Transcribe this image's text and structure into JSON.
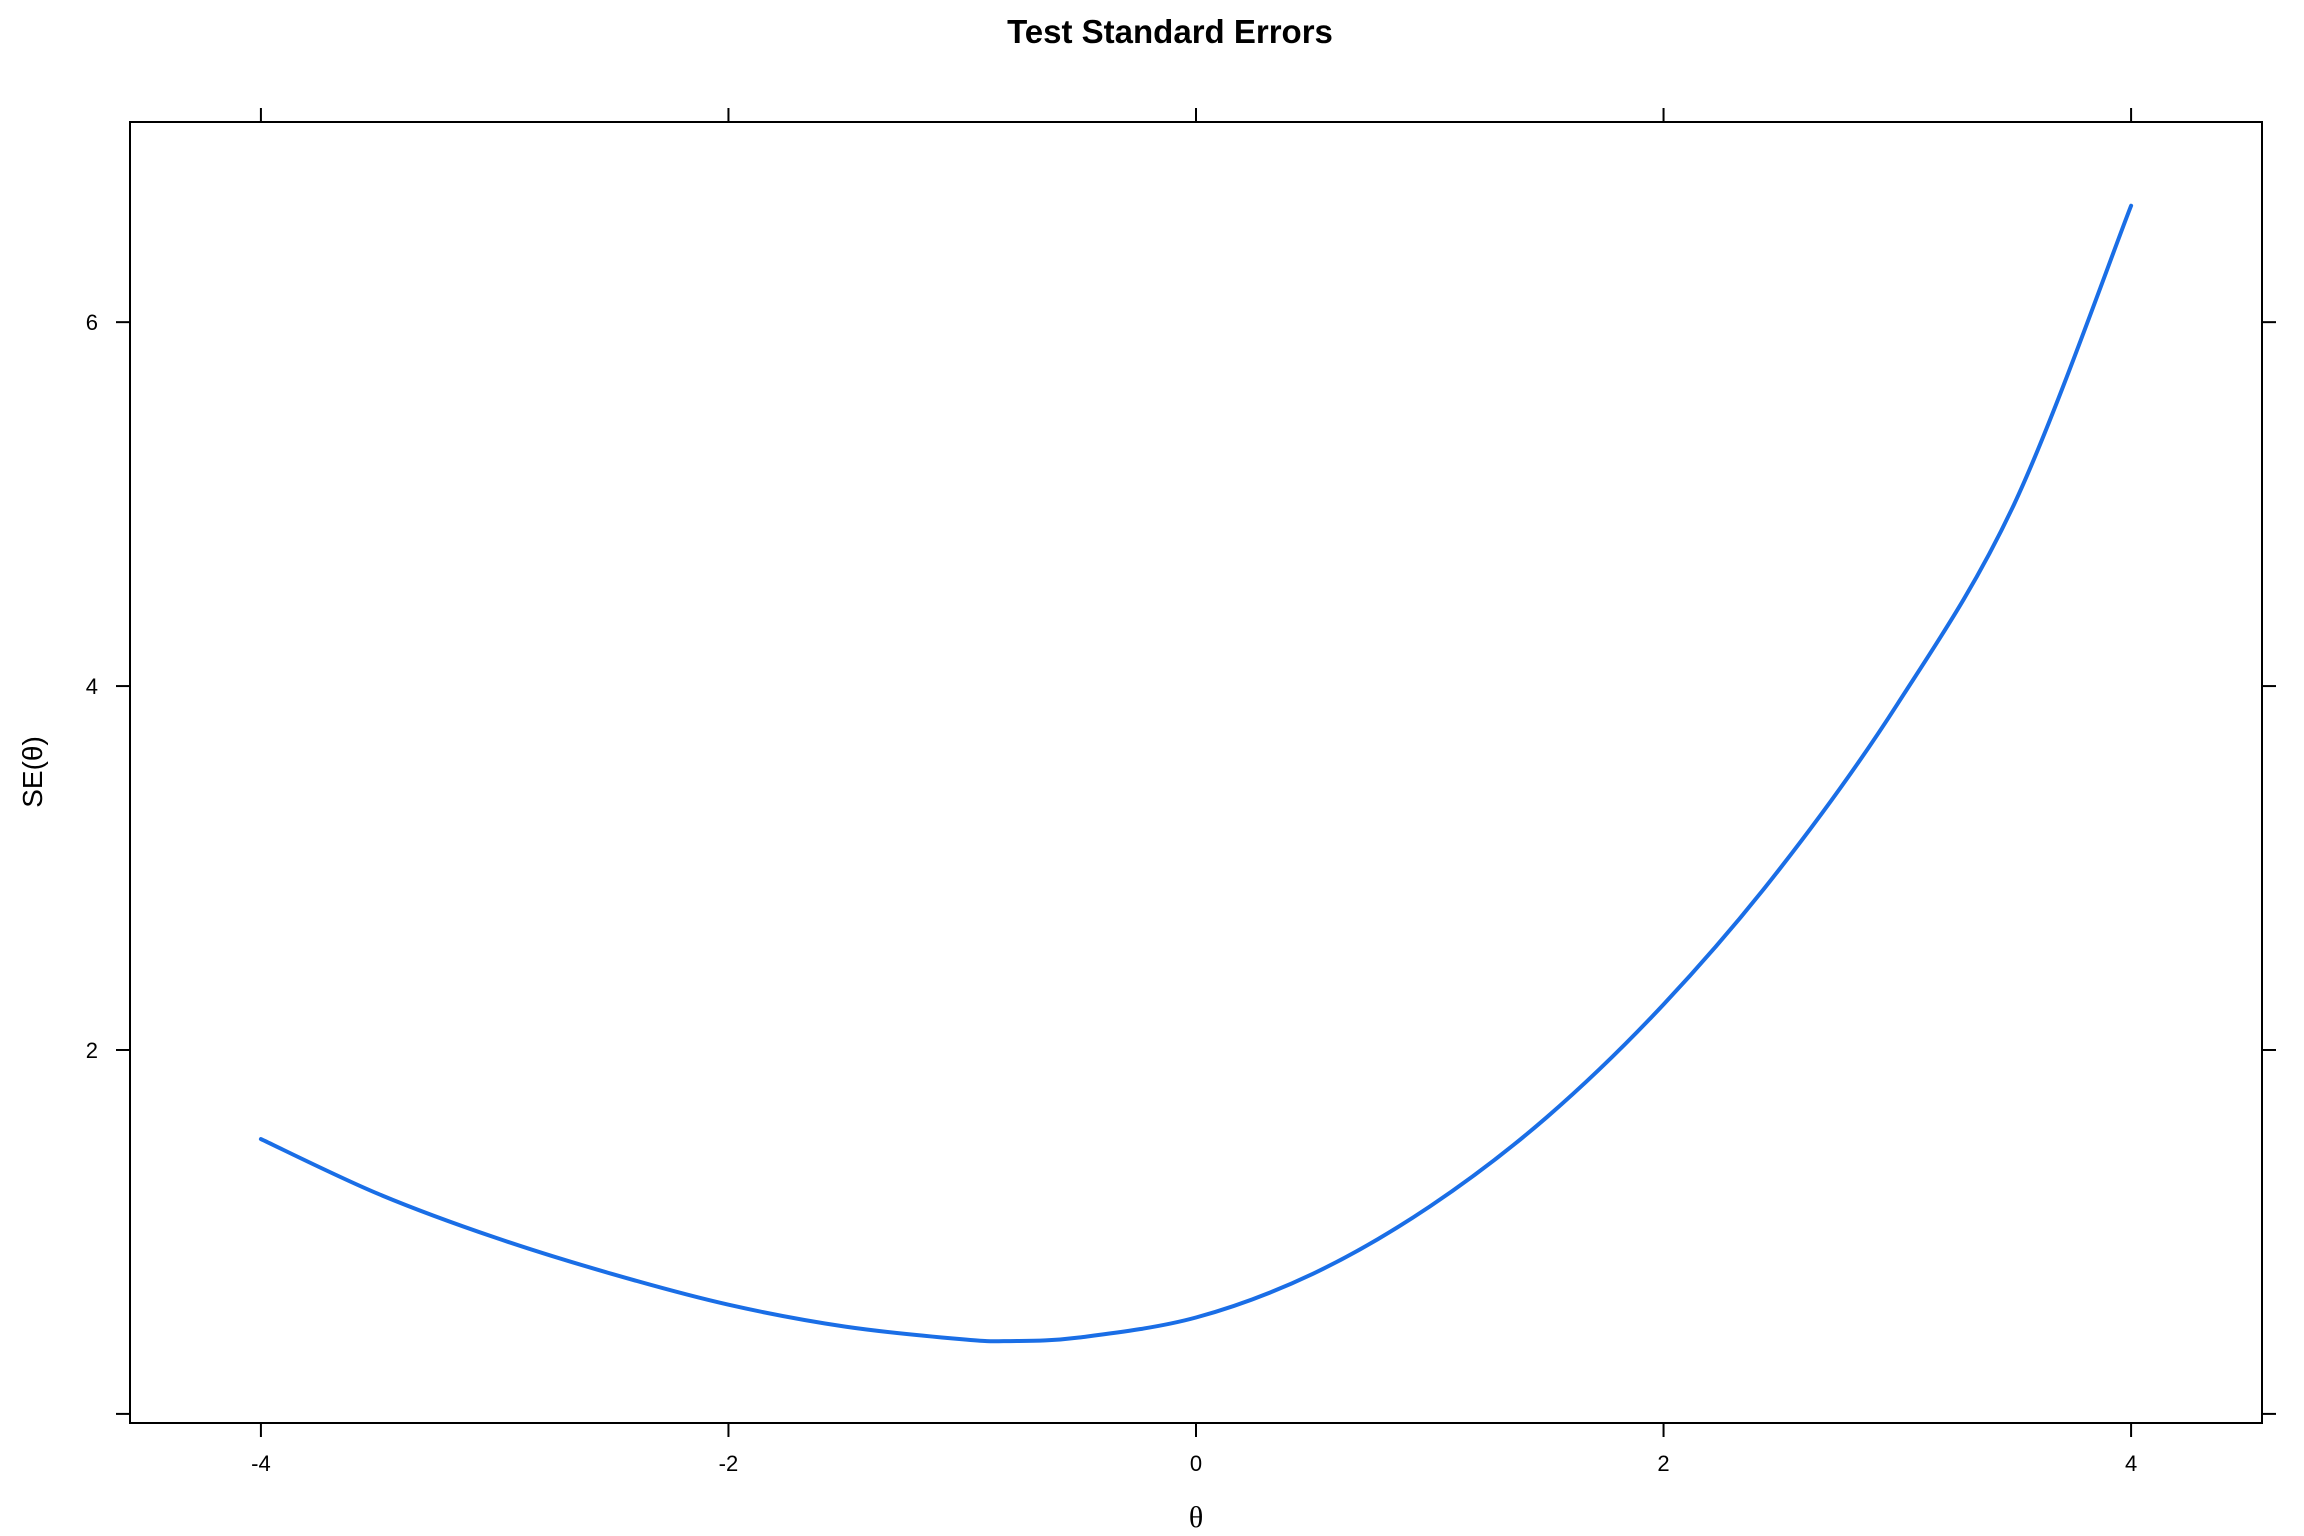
{
  "chart_data": {
    "type": "line",
    "title": "Test Standard Errors",
    "xlabel": "θ",
    "ylabel": "SE(θ)",
    "xlim": [
      -4.56,
      4.56
    ],
    "ylim": [
      -0.05,
      7.1
    ],
    "x_ticks": [
      -4,
      -2,
      0,
      2,
      4
    ],
    "y_ticks": [
      0,
      2,
      4,
      6
    ],
    "x_tick_labels": [
      "-4",
      "-2",
      "0",
      "2",
      "4"
    ],
    "y_tick_labels": [
      "",
      "2",
      "4",
      "6"
    ],
    "grid": false,
    "line_color": "#1a6ee6",
    "series": [
      {
        "x": [
          -4.0,
          -3.5,
          -3.0,
          -2.5,
          -2.0,
          -1.5,
          -1.0,
          -0.8,
          -0.5,
          0.0,
          0.5,
          1.0,
          1.5,
          2.0,
          2.5,
          3.0,
          3.5,
          4.0
        ],
        "values": [
          1.51,
          1.21,
          0.97,
          0.77,
          0.6,
          0.48,
          0.41,
          0.4,
          0.42,
          0.53,
          0.77,
          1.14,
          1.63,
          2.25,
          3.0,
          3.9,
          5.0,
          6.64
        ]
      }
    ]
  }
}
